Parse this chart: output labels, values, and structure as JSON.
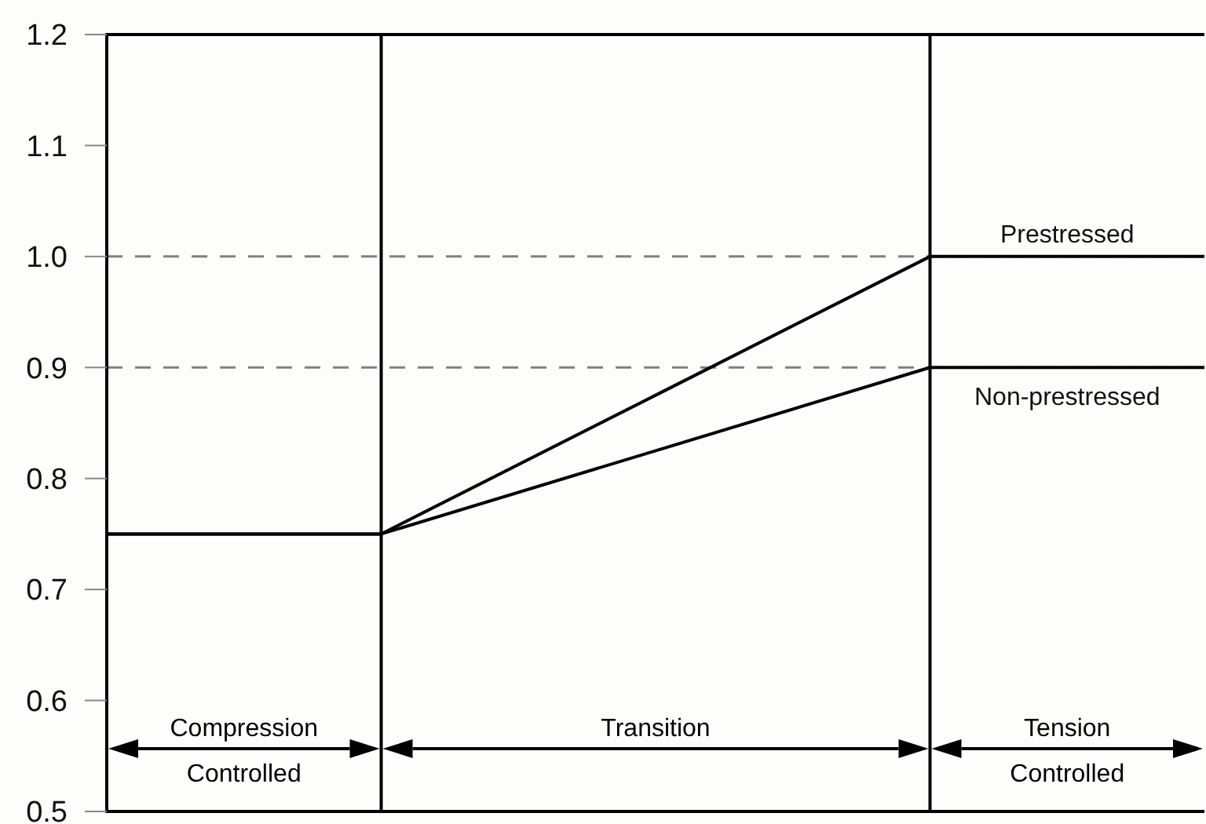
{
  "chart_data": {
    "type": "line",
    "categories": [
      null,
      null,
      null,
      null,
      null
    ],
    "ylim": [
      0.5,
      1.2
    ],
    "yticks": [
      0.5,
      0.6,
      0.7,
      0.8,
      0.9,
      {
        "value": 1.0,
        "label": "1.0"
      },
      1.1,
      1.2
    ],
    "tick_labels": "y",
    "grid": false,
    "marker": "none",
    "line_style": "solid",
    "series": [
      {
        "name": "Prestressed",
        "color": "#000000",
        "values": [
          0.75,
          0.75,
          0.875,
          1.0,
          1.0
        ]
      },
      {
        "name": "Non-prestressed",
        "color": "#000000",
        "values": [
          0.75,
          0.75,
          0.825,
          0.9,
          0.9
        ]
      }
    ],
    "ref_lines": [
      {
        "axis": "y",
        "value": 1.0,
        "color": "#808080",
        "line_style": "dashed"
      },
      {
        "axis": "y",
        "value": 0.9,
        "color": "#808080",
        "line_style": "dashed"
      }
    ],
    "annotations": [
      "Compression\nControlled",
      "Transition",
      "Tension\nControlled"
    ]
  }
}
